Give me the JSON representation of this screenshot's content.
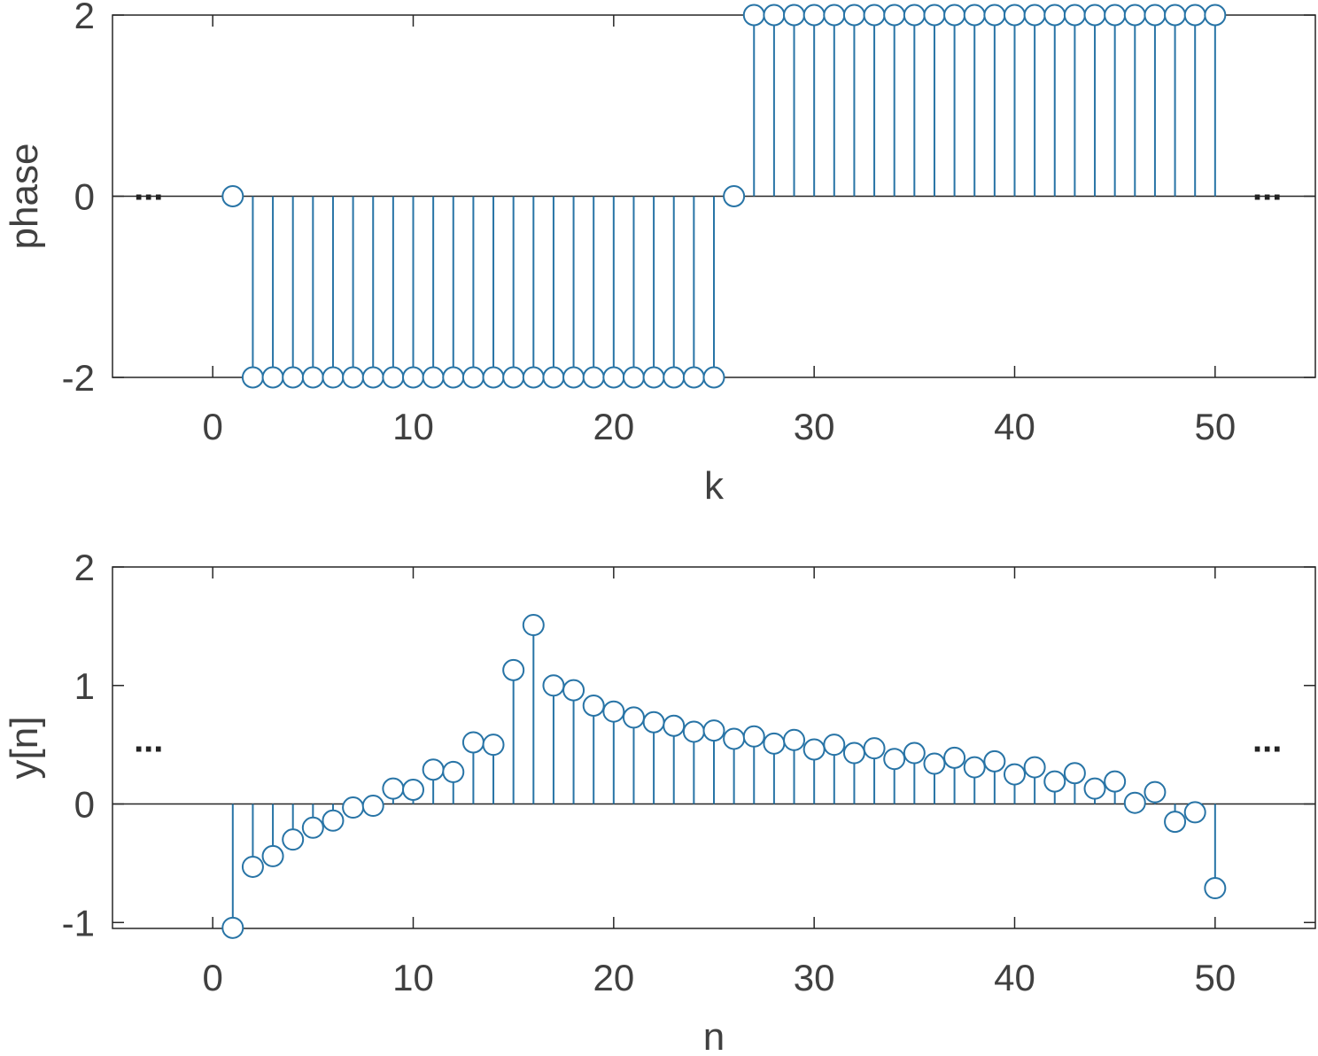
{
  "chart_data": [
    {
      "type": "stem",
      "xlabel": "k",
      "ylabel": "phase",
      "xlim": [
        -5,
        55
      ],
      "ylim": [
        -2,
        2
      ],
      "xticks": [
        0,
        10,
        20,
        30,
        40,
        50
      ],
      "yticks": [
        -2,
        0,
        2
      ],
      "ytick_labels": [
        "-2",
        "0",
        "2"
      ],
      "annotations": [
        "...",
        "..."
      ],
      "annotation_y": 0,
      "x": [
        1,
        2,
        3,
        4,
        5,
        6,
        7,
        8,
        9,
        10,
        11,
        12,
        13,
        14,
        15,
        16,
        17,
        18,
        19,
        20,
        21,
        22,
        23,
        24,
        25,
        26,
        27,
        28,
        29,
        30,
        31,
        32,
        33,
        34,
        35,
        36,
        37,
        38,
        39,
        40,
        41,
        42,
        43,
        44,
        45,
        46,
        47,
        48,
        49,
        50
      ],
      "values": [
        0,
        -2,
        -2,
        -2,
        -2,
        -2,
        -2,
        -2,
        -2,
        -2,
        -2,
        -2,
        -2,
        -2,
        -2,
        -2,
        -2,
        -2,
        -2,
        -2,
        -2,
        -2,
        -2,
        -2,
        -2,
        0,
        2,
        2,
        2,
        2,
        2,
        2,
        2,
        2,
        2,
        2,
        2,
        2,
        2,
        2,
        2,
        2,
        2,
        2,
        2,
        2,
        2,
        2,
        2,
        2
      ]
    },
    {
      "type": "stem",
      "xlabel": "n",
      "ylabel": "y[n]",
      "xlim": [
        -5,
        55
      ],
      "ylim": [
        -1.05,
        2
      ],
      "xticks": [
        0,
        10,
        20,
        30,
        40,
        50
      ],
      "yticks": [
        -1,
        0,
        1,
        2
      ],
      "ytick_labels": [
        "-1",
        "0",
        "1",
        "2"
      ],
      "annotations": [
        "...",
        "..."
      ],
      "annotation_y": 0.47,
      "x": [
        1,
        2,
        3,
        4,
        5,
        6,
        7,
        8,
        9,
        10,
        11,
        12,
        13,
        14,
        15,
        16,
        17,
        18,
        19,
        20,
        21,
        22,
        23,
        24,
        25,
        26,
        27,
        28,
        29,
        30,
        31,
        32,
        33,
        34,
        35,
        36,
        37,
        38,
        39,
        40,
        41,
        42,
        43,
        44,
        45,
        46,
        47,
        48,
        49,
        50
      ],
      "values": [
        -1.045,
        -0.53,
        -0.44,
        -0.3,
        -0.2,
        -0.14,
        -0.03,
        -0.015,
        0.13,
        0.12,
        0.29,
        0.27,
        0.52,
        0.5,
        1.13,
        1.51,
        1.0,
        0.96,
        0.83,
        0.78,
        0.73,
        0.69,
        0.66,
        0.61,
        0.62,
        0.55,
        0.57,
        0.51,
        0.54,
        0.46,
        0.5,
        0.43,
        0.47,
        0.38,
        0.43,
        0.34,
        0.39,
        0.31,
        0.36,
        0.25,
        0.31,
        0.19,
        0.26,
        0.13,
        0.19,
        0.01,
        0.1,
        -0.15,
        -0.07,
        -0.71
      ]
    }
  ],
  "colors": {
    "stem": "#2874A6",
    "axis": "#262626",
    "text": "#404040"
  }
}
